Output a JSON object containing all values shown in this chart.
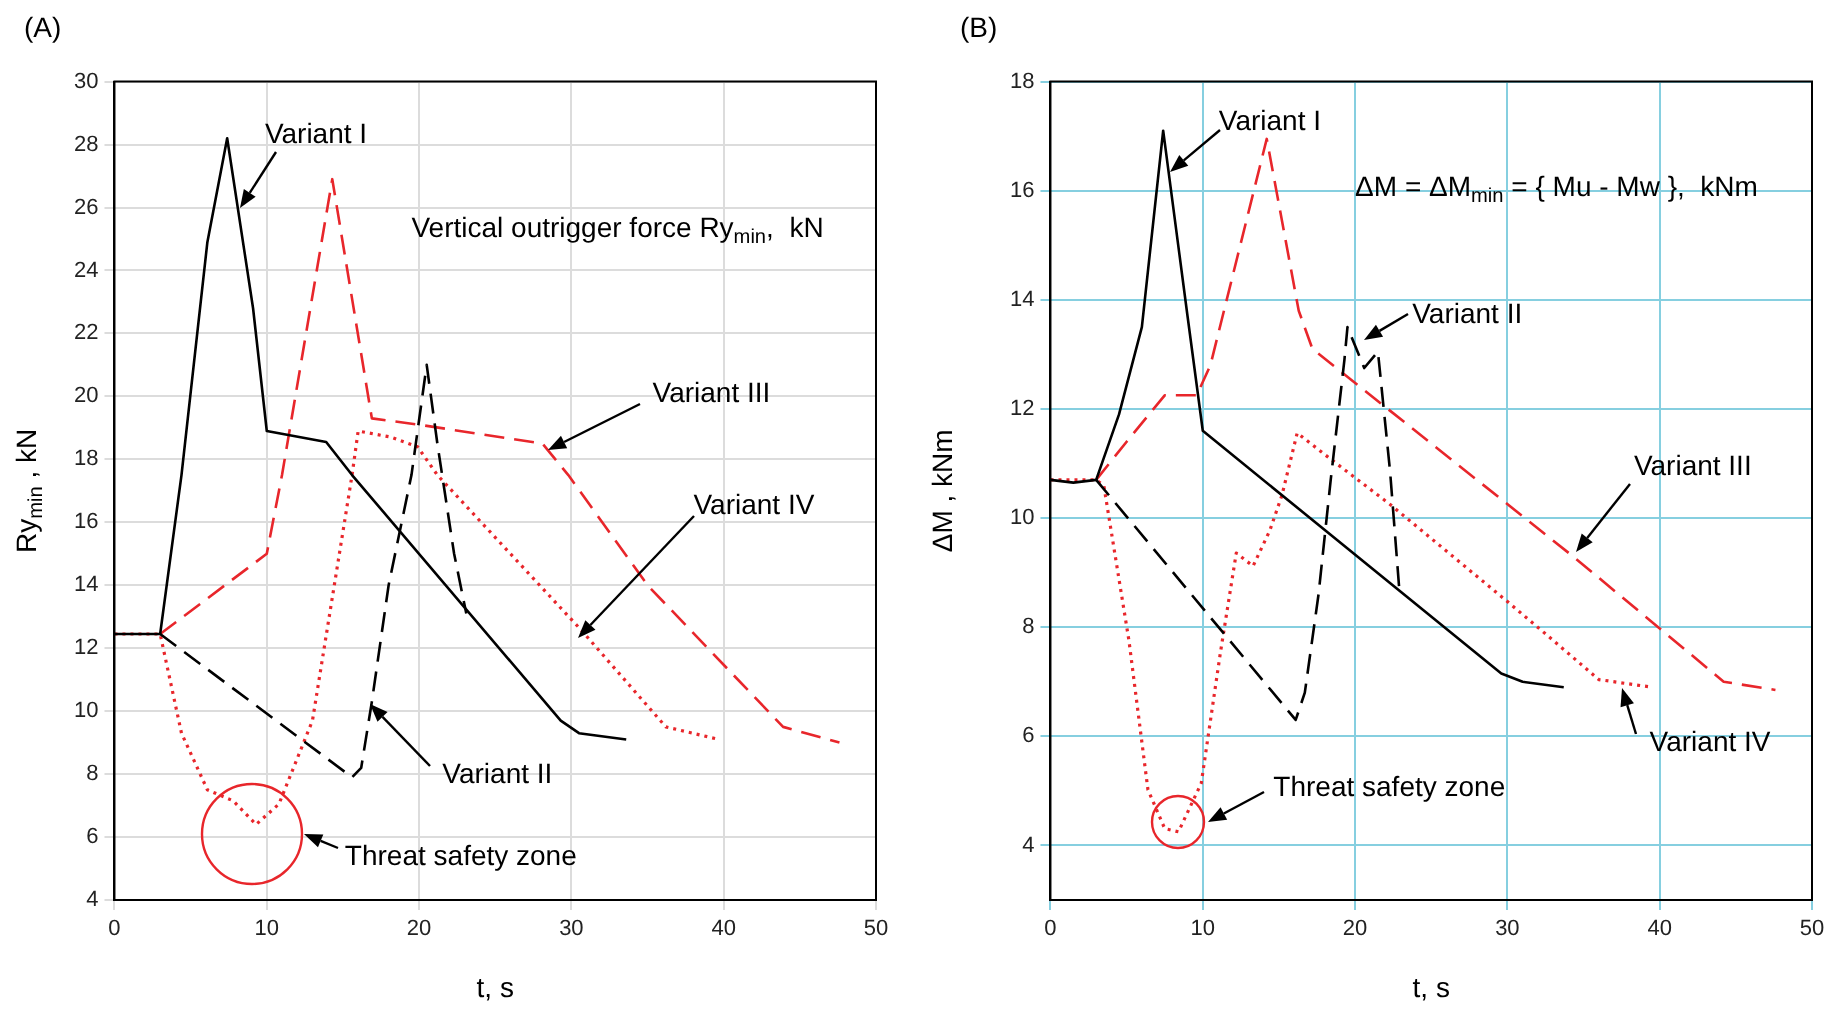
{
  "chart_data": [
    {
      "type": "line",
      "title": "(A)",
      "xlabel": "t, s",
      "ylabel": "Ry$_{min}$ , kN",
      "xlim": [
        0,
        50
      ],
      "ylim": [
        4,
        30
      ],
      "xticks": [
        0,
        10,
        20,
        30,
        40,
        50
      ],
      "yticks": [
        4,
        6,
        8,
        10,
        12,
        14,
        16,
        18,
        20,
        22,
        24,
        26,
        28,
        30
      ],
      "grid": true,
      "legend": false,
      "marker": "none",
      "series": [
        {
          "color": "#000000",
          "line_style": "solid",
          "x": [
            0,
            3,
            4.4,
            6.1,
            7.4,
            9.1,
            10,
            13.9,
            15.6,
            29.3,
            30.5,
            33.6
          ],
          "values": [
            12.45,
            12.45,
            17.5,
            24.9,
            28.2,
            22.8,
            18.9,
            18.55,
            17.5,
            9.7,
            9.3,
            9.1
          ]
        },
        {
          "color": "#000000",
          "line_style": "dashed",
          "x": [
            3,
            15.6,
            16.2,
            16.9,
            18,
            19.5,
            20.5,
            21.2,
            22.3,
            23.1
          ],
          "values": [
            12.45,
            7.9,
            8.2,
            10.3,
            14,
            17.5,
            21,
            18.5,
            15,
            13.1
          ]
        },
        {
          "color": "#e8262b",
          "line_style": "dashed",
          "x": [
            3,
            10,
            11,
            14.3,
            16.9,
            20,
            28.1,
            29.8,
            35,
            43.9,
            47.6
          ],
          "values": [
            12.45,
            15,
            17.5,
            26.9,
            19.3,
            19.1,
            18.5,
            17.5,
            14,
            9.5,
            9
          ]
        },
        {
          "color": "#e8262b",
          "line_style": "dotted",
          "x": [
            0,
            3,
            4.4,
            6.1,
            7.8,
            9.3,
            10.8,
            13,
            15.6,
            16,
            18.2,
            19.9,
            21.2,
            30.6,
            36.2,
            39.7
          ],
          "values": [
            12.45,
            12.45,
            9.3,
            7.5,
            7.15,
            6.4,
            7.05,
            9.7,
            17.5,
            18.9,
            18.7,
            18.4,
            17.5,
            12.6,
            9.5,
            9.1
          ]
        }
      ],
      "annotations": [
        "Vertical outrigger force Ry$_{min}$,  kN",
        {
          "text": "Variant I",
          "x": 8.3,
          "y": 26
        },
        {
          "text": "Variant III",
          "x": 28.5,
          "y": 18.3
        },
        {
          "text": "Variant IV",
          "x": 30.4,
          "y": 12.3
        },
        "Variant II",
        "Threat safety zone"
      ]
    },
    {
      "type": "line",
      "title": "(B)",
      "xlabel": "t, s",
      "ylabel": "ΔM , kNm",
      "xlim": [
        0,
        50
      ],
      "ylim": [
        3,
        18
      ],
      "xticks": [
        0,
        10,
        20,
        30,
        40,
        50
      ],
      "yticks": [
        4,
        6,
        8,
        10,
        12,
        14,
        16,
        18
      ],
      "grid": true,
      "legend": false,
      "marker": "none",
      "series": [
        {
          "color": "#000000",
          "line_style": "solid",
          "x": [
            0,
            1.5,
            3,
            4.5,
            6,
            7.4,
            9,
            10,
            29.6,
            31,
            33.7
          ],
          "values": [
            10.7,
            10.65,
            10.7,
            11.9,
            13.5,
            17.1,
            13.7,
            11.6,
            7.15,
            7,
            6.9
          ]
        },
        {
          "color": "#000000",
          "line_style": "dashed",
          "x": [
            3,
            16.1,
            16.7,
            17.6,
            18.4,
            19.3,
            19.5,
            20.6,
            21.5,
            22.3,
            22.9
          ],
          "values": [
            10.7,
            6.3,
            6.8,
            8.6,
            10.7,
            12.9,
            13.5,
            12.75,
            13.05,
            10.85,
            8.7
          ]
        },
        {
          "color": "#e8262b",
          "line_style": "dashed",
          "x": [
            3,
            5,
            7.5,
            9.6,
            10.5,
            14.2,
            16.3,
            17.2,
            34.3,
            39.9,
            44.2,
            47.6
          ],
          "values": [
            10.7,
            11.4,
            12.25,
            12.25,
            12.8,
            16.95,
            13.8,
            13.1,
            9.3,
            8,
            7,
            6.85
          ]
        },
        {
          "color": "#e8262b",
          "line_style": "dotted",
          "x": [
            0,
            3,
            3.5,
            5.15,
            6.4,
            7.5,
            8.4,
            9.9,
            11.15,
            12.2,
            13.3,
            14.4,
            15.2,
            16.2,
            18.4,
            22.3,
            30,
            33,
            36,
            39.5
          ],
          "values": [
            10.7,
            10.7,
            10.6,
            7.76,
            5.02,
            4.31,
            4.25,
            5.14,
            7.52,
            9.36,
            9.12,
            9.77,
            10.42,
            11.56,
            11.08,
            10.25,
            8.47,
            7.76,
            7.04,
            6.9
          ]
        }
      ],
      "annotations": [
        "ΔM = ΔM$_{min}$ = { Mu - Mw },  kNm",
        {
          "text": "Variant I",
          "x": 7.9,
          "y": 16.34
        },
        {
          "text": "Variant II",
          "x": 20.6,
          "y": 13.28
        },
        {
          "text": "Variant III",
          "x": 34.5,
          "y": 9.36
        },
        {
          "text": "Variant IV",
          "x": 37.5,
          "y": 6.9
        },
        "Threat safety zone"
      ]
    }
  ]
}
